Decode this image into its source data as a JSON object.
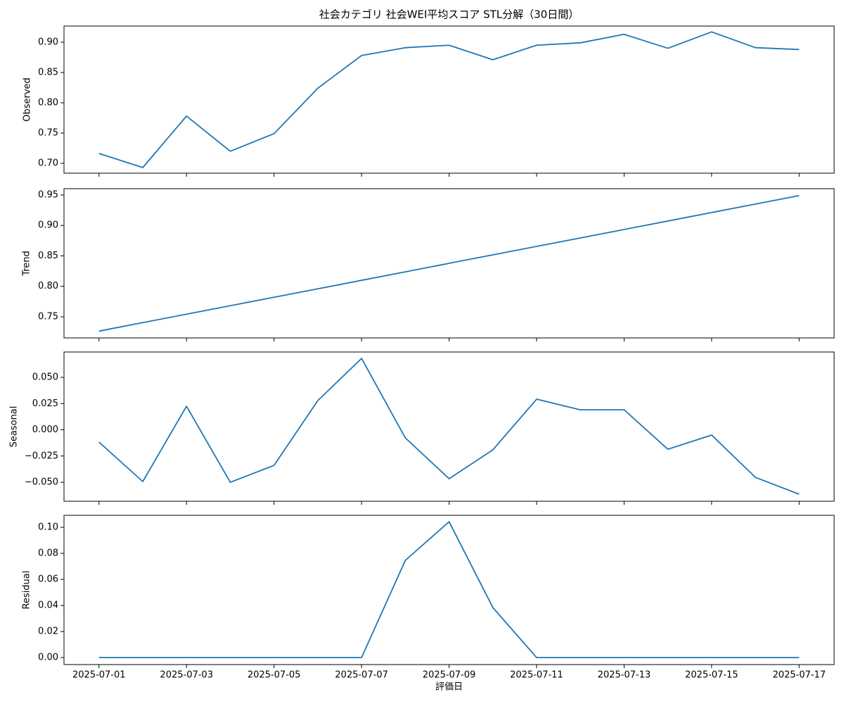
{
  "chart_data": [
    {
      "type": "line",
      "title": "社会カテゴリ 社会WEI平均スコア STL分解（30日間）",
      "ylabel": "Observed",
      "color": "#1f77b4",
      "x": [
        "2025-07-01",
        "2025-07-02",
        "2025-07-03",
        "2025-07-04",
        "2025-07-05",
        "2025-07-06",
        "2025-07-07",
        "2025-07-08",
        "2025-07-09",
        "2025-07-10",
        "2025-07-11",
        "2025-07-12",
        "2025-07-13",
        "2025-07-14",
        "2025-07-15",
        "2025-07-16",
        "2025-07-17"
      ],
      "values": [
        0.7163,
        0.693,
        0.778,
        0.72,
        0.749,
        0.824,
        0.878,
        0.891,
        0.895,
        0.871,
        0.895,
        0.899,
        0.913,
        0.89,
        0.917,
        0.891,
        0.888
      ],
      "xlim": [
        "2025-07-01",
        "2025-07-17"
      ],
      "xticks": [
        "2025-07-01",
        "2025-07-03",
        "2025-07-05",
        "2025-07-07",
        "2025-07-09",
        "2025-07-11",
        "2025-07-13",
        "2025-07-15",
        "2025-07-17"
      ],
      "ylim": [
        0.6837,
        0.9267
      ],
      "yticks": [
        {
          "value": 0.7,
          "label": "0.70"
        },
        {
          "value": 0.75,
          "label": "0.75"
        },
        {
          "value": 0.8,
          "label": "0.80"
        },
        {
          "value": 0.85,
          "label": "0.85"
        },
        {
          "value": 0.9,
          "label": "0.90"
        }
      ]
    },
    {
      "type": "line",
      "ylabel": "Trend",
      "color": "#1f77b4",
      "x": [
        "2025-07-01",
        "2025-07-02",
        "2025-07-03",
        "2025-07-04",
        "2025-07-05",
        "2025-07-06",
        "2025-07-07",
        "2025-07-08",
        "2025-07-09",
        "2025-07-10",
        "2025-07-11",
        "2025-07-12",
        "2025-07-13",
        "2025-07-14",
        "2025-07-15",
        "2025-07-16",
        "2025-07-17"
      ],
      "values": [
        0.7265,
        0.7404,
        0.7543,
        0.7682,
        0.7821,
        0.796,
        0.8099,
        0.8238,
        0.8378,
        0.8517,
        0.8656,
        0.8795,
        0.8934,
        0.9073,
        0.9212,
        0.9351,
        0.949
      ],
      "xlim": [
        "2025-07-01",
        "2025-07-17"
      ],
      "xticks": [
        "2025-07-01",
        "2025-07-03",
        "2025-07-05",
        "2025-07-07",
        "2025-07-09",
        "2025-07-11",
        "2025-07-13",
        "2025-07-15",
        "2025-07-17"
      ],
      "ylim": [
        0.7153,
        0.9604
      ],
      "yticks": [
        {
          "value": 0.75,
          "label": "0.75"
        },
        {
          "value": 0.8,
          "label": "0.80"
        },
        {
          "value": 0.85,
          "label": "0.85"
        },
        {
          "value": 0.9,
          "label": "0.90"
        },
        {
          "value": 0.95,
          "label": "0.95"
        }
      ]
    },
    {
      "type": "line",
      "ylabel": "Seasonal",
      "color": "#1f77b4",
      "x": [
        "2025-07-01",
        "2025-07-02",
        "2025-07-03",
        "2025-07-04",
        "2025-07-05",
        "2025-07-06",
        "2025-07-07",
        "2025-07-08",
        "2025-07-09",
        "2025-07-10",
        "2025-07-11",
        "2025-07-12",
        "2025-07-13",
        "2025-07-14",
        "2025-07-15",
        "2025-07-16",
        "2025-07-17"
      ],
      "values": [
        -0.0117,
        -0.0493,
        0.0225,
        -0.05,
        -0.0339,
        0.0279,
        0.0681,
        -0.0077,
        -0.0466,
        -0.0191,
        0.0292,
        0.0191,
        0.0191,
        -0.0185,
        -0.005,
        -0.0453,
        -0.0614
      ],
      "xlim": [
        "2025-07-01",
        "2025-07-17"
      ],
      "xticks": [
        "2025-07-01",
        "2025-07-03",
        "2025-07-05",
        "2025-07-07",
        "2025-07-09",
        "2025-07-11",
        "2025-07-13",
        "2025-07-15",
        "2025-07-17"
      ],
      "ylim": [
        -0.0681,
        0.0742
      ],
      "yticks": [
        {
          "value": -0.05,
          "label": "−0.050"
        },
        {
          "value": -0.025,
          "label": "−0.025"
        },
        {
          "value": 0,
          "label": "0.000"
        },
        {
          "value": 0.025,
          "label": "0.025"
        },
        {
          "value": 0.05,
          "label": "0.050"
        }
      ]
    },
    {
      "type": "line",
      "ylabel": "Residual",
      "xlabel": "評価日",
      "color": "#1f77b4",
      "x": [
        "2025-07-01",
        "2025-07-02",
        "2025-07-03",
        "2025-07-04",
        "2025-07-05",
        "2025-07-06",
        "2025-07-07",
        "2025-07-08",
        "2025-07-09",
        "2025-07-10",
        "2025-07-11",
        "2025-07-12",
        "2025-07-13",
        "2025-07-14",
        "2025-07-15",
        "2025-07-16",
        "2025-07-17"
      ],
      "values": [
        0,
        0,
        0,
        0,
        0,
        0,
        0,
        0.0746,
        0.1043,
        0.0384,
        0,
        0,
        0,
        0,
        0,
        0,
        0
      ],
      "xlim": [
        "2025-07-01",
        "2025-07-17"
      ],
      "xticks": [
        "2025-07-01",
        "2025-07-03",
        "2025-07-05",
        "2025-07-07",
        "2025-07-09",
        "2025-07-11",
        "2025-07-13",
        "2025-07-15",
        "2025-07-17"
      ],
      "ylim": [
        -0.0054,
        0.1092
      ],
      "yticks": [
        {
          "value": 0,
          "label": "0.00"
        },
        {
          "value": 0.02,
          "label": "0.02"
        },
        {
          "value": 0.04,
          "label": "0.04"
        },
        {
          "value": 0.06,
          "label": "0.06"
        },
        {
          "value": 0.08,
          "label": "0.08"
        },
        {
          "value": 0.1,
          "label": "0.10"
        }
      ]
    }
  ]
}
